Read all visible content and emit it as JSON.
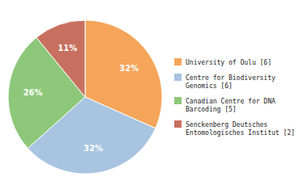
{
  "chart_data": {
    "type": "pie",
    "categories": [
      "University of Oulu [6]",
      "Centre for Biodiversity\nGenomics [6]",
      "Canadian Centre for DNA\nBarcoding [5]",
      "Senckenberg Deutsches\nEntomologisches Institut [2]"
    ],
    "values": [
      32,
      32,
      26,
      11
    ],
    "value_labels": [
      "32%",
      "32%",
      "26%",
      "11%"
    ],
    "colors": [
      "#F5A55A",
      "#A8C4E0",
      "#8DC87A",
      "#C87060"
    ],
    "data_labels": true,
    "legend": "right"
  }
}
